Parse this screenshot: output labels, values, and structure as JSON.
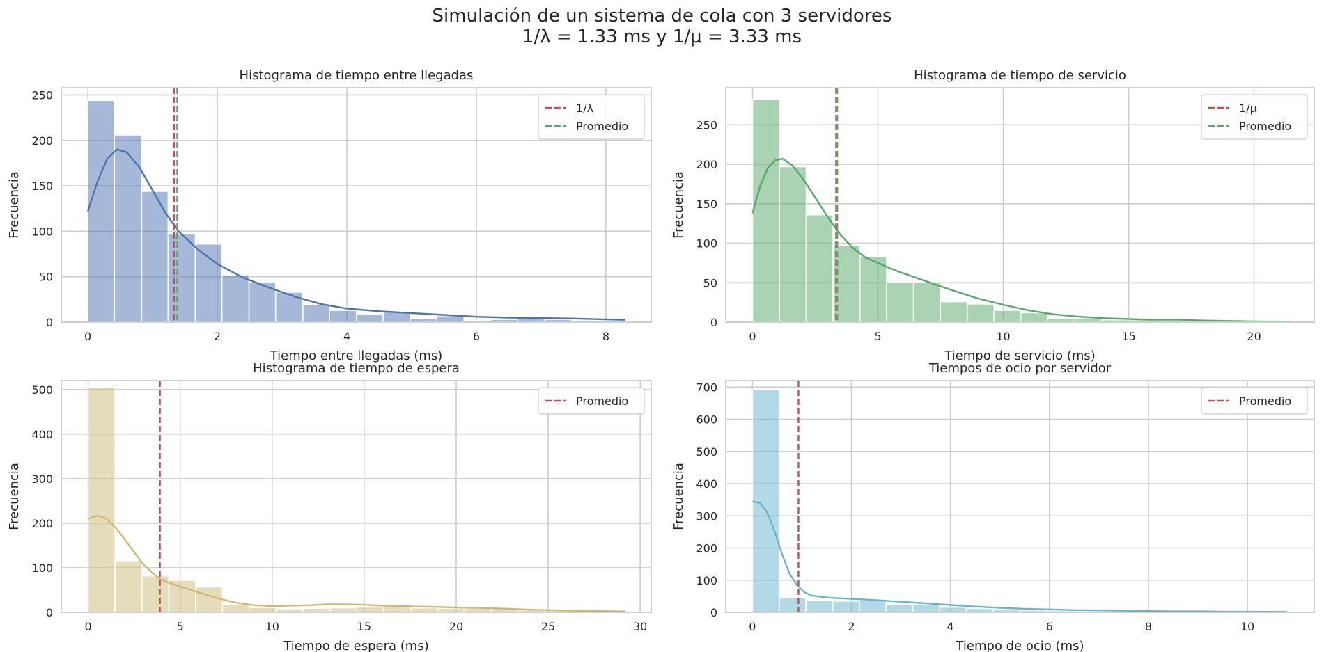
{
  "figure": {
    "title_line1": "Simulación de un sistema de cola con 3 servidores",
    "title_line2": "1/λ = 1.33 ms y 1/μ = 3.33 ms"
  },
  "colors": {
    "grid": "#cccccc",
    "text": "#262626",
    "ref_red": "#c44e52",
    "mean_green": "#55a868"
  },
  "chart_data": [
    {
      "type": "histogram",
      "title": "Histograma de tiempo entre llegadas",
      "xlabel": "Tiempo entre llegadas (ms)",
      "ylabel": "Frecuencia",
      "xlim": [
        -0.41,
        8.7
      ],
      "ylim": [
        0,
        258
      ],
      "xticks": [
        0,
        2,
        4,
        6,
        8
      ],
      "yticks": [
        0,
        50,
        100,
        150,
        200,
        250
      ],
      "color": "#4c72b0",
      "bin_edges": [
        0,
        0.41,
        0.83,
        1.24,
        1.66,
        2.07,
        2.49,
        2.9,
        3.32,
        3.73,
        4.15,
        4.56,
        4.98,
        5.39,
        5.81,
        6.22,
        6.64,
        7.05,
        7.47,
        7.88,
        8.3
      ],
      "counts": [
        244,
        206,
        144,
        97,
        86,
        52,
        44,
        33,
        19,
        13,
        9,
        12,
        4,
        7,
        2,
        3,
        4,
        3,
        2,
        2
      ],
      "kde": [
        [
          0,
          122
        ],
        [
          0.15,
          155
        ],
        [
          0.3,
          180
        ],
        [
          0.45,
          190
        ],
        [
          0.6,
          187
        ],
        [
          0.8,
          170
        ],
        [
          1.0,
          145
        ],
        [
          1.2,
          120
        ],
        [
          1.4,
          100
        ],
        [
          1.7,
          80
        ],
        [
          2.0,
          64
        ],
        [
          2.4,
          49
        ],
        [
          2.8,
          38
        ],
        [
          3.2,
          28
        ],
        [
          3.6,
          20
        ],
        [
          4.0,
          15
        ],
        [
          4.5,
          12
        ],
        [
          5.0,
          10
        ],
        [
          5.5,
          8
        ],
        [
          6.0,
          6
        ],
        [
          6.5,
          5
        ],
        [
          7.0,
          4.5
        ],
        [
          7.5,
          4
        ],
        [
          8.0,
          3
        ],
        [
          8.3,
          2.5
        ]
      ],
      "reference_lines": [
        {
          "label": "1/λ",
          "x": 1.33,
          "color": "#c44e52"
        },
        {
          "label": "Promedio",
          "x": 1.38,
          "color": "#55a868"
        }
      ],
      "legend": "upper right"
    },
    {
      "type": "histogram",
      "title": "Histograma de tiempo de servicio",
      "xlabel": "Tiempo de servicio (ms)",
      "ylabel": "Frecuencia",
      "xlim": [
        -1.07,
        22.4
      ],
      "ylim": [
        0,
        297
      ],
      "xticks": [
        0,
        5,
        10,
        15,
        20
      ],
      "yticks": [
        0,
        50,
        100,
        150,
        200,
        250
      ],
      "color": "#55a868",
      "bin_edges": [
        0,
        1.07,
        2.14,
        3.21,
        4.28,
        5.35,
        6.42,
        7.49,
        8.56,
        9.63,
        10.7,
        11.77,
        12.84,
        13.91,
        14.98,
        16.05,
        17.12,
        18.19,
        19.26,
        20.33,
        21.4
      ],
      "counts": [
        282,
        197,
        136,
        97,
        83,
        51,
        51,
        26,
        23,
        15,
        12,
        5,
        5,
        3,
        3,
        2,
        1,
        1,
        1,
        1
      ],
      "kde": [
        [
          0,
          138
        ],
        [
          0.3,
          172
        ],
        [
          0.6,
          195
        ],
        [
          0.9,
          205
        ],
        [
          1.2,
          207
        ],
        [
          1.6,
          198
        ],
        [
          2.0,
          182
        ],
        [
          2.5,
          158
        ],
        [
          3.0,
          133
        ],
        [
          3.5,
          111
        ],
        [
          4.0,
          94
        ],
        [
          4.5,
          82
        ],
        [
          5.0,
          75
        ],
        [
          5.5,
          68
        ],
        [
          6.0,
          62
        ],
        [
          7.0,
          51
        ],
        [
          8.0,
          40
        ],
        [
          9.0,
          30
        ],
        [
          10.0,
          22
        ],
        [
          11.0,
          15
        ],
        [
          12.0,
          10
        ],
        [
          13.0,
          7
        ],
        [
          14.0,
          5
        ],
        [
          15.0,
          4
        ],
        [
          16.0,
          3
        ],
        [
          17.0,
          3
        ],
        [
          18.0,
          2
        ],
        [
          19.0,
          1.5
        ],
        [
          20.0,
          1
        ],
        [
          21.4,
          0.5
        ]
      ],
      "reference_lines": [
        {
          "label": "1/μ",
          "x": 3.33,
          "color": "#c44e52"
        },
        {
          "label": "Promedio",
          "x": 3.38,
          "color": "#55a868"
        }
      ],
      "legend": "upper right"
    },
    {
      "type": "histogram",
      "title": "Histograma de tiempo de espera",
      "xlabel": "Tiempo de espera (ms)",
      "ylabel": "Frecuencia",
      "xlim": [
        -1.46,
        30.6
      ],
      "ylim": [
        0,
        520
      ],
      "xticks": [
        0,
        5,
        10,
        15,
        20,
        25,
        30
      ],
      "yticks": [
        0,
        100,
        200,
        300,
        400,
        500
      ],
      "color": "#ccb974",
      "bin_edges": [
        0,
        1.46,
        2.92,
        4.38,
        5.84,
        7.3,
        8.76,
        10.22,
        11.68,
        13.14,
        14.6,
        16.06,
        17.52,
        18.98,
        20.44,
        21.9,
        23.36,
        24.82,
        26.28,
        27.74,
        29.2
      ],
      "counts": [
        506,
        116,
        82,
        72,
        57,
        18,
        11,
        8,
        9,
        10,
        12,
        13,
        10,
        9,
        9,
        8,
        5,
        4,
        3,
        2
      ],
      "kde": [
        [
          0,
          210
        ],
        [
          0.5,
          217
        ],
        [
          1.0,
          210
        ],
        [
          1.5,
          190
        ],
        [
          2.0,
          163
        ],
        [
          2.5,
          135
        ],
        [
          3.0,
          108
        ],
        [
          3.5,
          88
        ],
        [
          4.0,
          73
        ],
        [
          4.5,
          65
        ],
        [
          5.0,
          58
        ],
        [
          6.0,
          45
        ],
        [
          7.0,
          32
        ],
        [
          8.0,
          22
        ],
        [
          9.0,
          16
        ],
        [
          10.0,
          14
        ],
        [
          11.0,
          15
        ],
        [
          12.0,
          16
        ],
        [
          13.0,
          18
        ],
        [
          14.0,
          18
        ],
        [
          15.0,
          17
        ],
        [
          16.0,
          15
        ],
        [
          17.0,
          14
        ],
        [
          18.0,
          13
        ],
        [
          19.0,
          12
        ],
        [
          20.0,
          11
        ],
        [
          21.0,
          10
        ],
        [
          22.0,
          9
        ],
        [
          23.0,
          8
        ],
        [
          24.0,
          6
        ],
        [
          25.0,
          5
        ],
        [
          26.0,
          4
        ],
        [
          27.0,
          3
        ],
        [
          28.0,
          3
        ],
        [
          29.2,
          2
        ]
      ],
      "reference_lines": [
        {
          "label": "Promedio",
          "x": 3.9,
          "color": "#c44e52"
        }
      ],
      "legend": "upper right"
    },
    {
      "type": "histogram",
      "title": "Tiempos de ocio por servidor",
      "xlabel": "Tiempo de ocio (ms)",
      "ylabel": "Frecuencia",
      "xlim": [
        -0.54,
        11.35
      ],
      "ylim": [
        0,
        720
      ],
      "xticks": [
        0,
        2,
        4,
        6,
        8,
        10
      ],
      "yticks": [
        0,
        100,
        200,
        300,
        400,
        500,
        600,
        700
      ],
      "color": "#64b5cd",
      "bin_edges": [
        0,
        0.54,
        1.08,
        1.62,
        2.16,
        2.7,
        3.24,
        3.78,
        4.32,
        4.86,
        5.4,
        5.94,
        6.48,
        7.02,
        7.56,
        8.1,
        8.64,
        9.18,
        9.72,
        10.26,
        10.8
      ],
      "counts": [
        692,
        45,
        37,
        35,
        37,
        24,
        25,
        16,
        12,
        8,
        6,
        5,
        4,
        3,
        3,
        2,
        2,
        1,
        1,
        1
      ],
      "kde": [
        [
          0,
          345
        ],
        [
          0.15,
          340
        ],
        [
          0.3,
          310
        ],
        [
          0.45,
          250
        ],
        [
          0.6,
          180
        ],
        [
          0.75,
          120
        ],
        [
          0.9,
          85
        ],
        [
          1.05,
          62
        ],
        [
          1.2,
          52
        ],
        [
          1.5,
          46
        ],
        [
          2.0,
          42
        ],
        [
          2.5,
          38
        ],
        [
          3.0,
          33
        ],
        [
          3.5,
          28
        ],
        [
          4.0,
          23
        ],
        [
          4.5,
          18
        ],
        [
          5.0,
          14
        ],
        [
          5.5,
          11
        ],
        [
          6.0,
          9
        ],
        [
          6.5,
          7
        ],
        [
          7.0,
          6
        ],
        [
          7.5,
          5
        ],
        [
          8.0,
          4
        ],
        [
          8.5,
          3
        ],
        [
          9.0,
          3
        ],
        [
          9.5,
          2
        ],
        [
          10.0,
          2
        ],
        [
          10.8,
          1.5
        ]
      ],
      "reference_lines": [
        {
          "label": "Promedio",
          "x": 0.93,
          "color": "#c44e52"
        }
      ],
      "legend": "upper right"
    }
  ]
}
